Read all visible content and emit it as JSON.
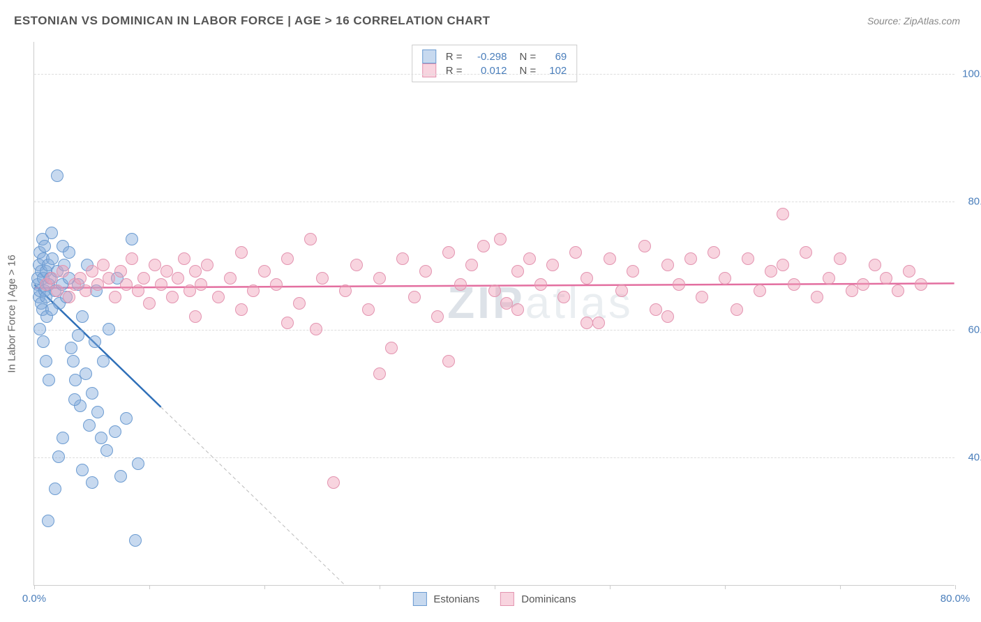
{
  "header": {
    "title": "ESTONIAN VS DOMINICAN IN LABOR FORCE | AGE > 16 CORRELATION CHART",
    "source": "Source: ZipAtlas.com"
  },
  "chart": {
    "type": "scatter",
    "yaxis_label": "In Labor Force | Age > 16",
    "xlim": [
      0,
      80
    ],
    "ylim": [
      20,
      105
    ],
    "yticks": [
      40,
      60,
      80,
      100
    ],
    "ytick_labels": [
      "40.0%",
      "60.0%",
      "80.0%",
      "100.0%"
    ],
    "xticks": [
      0,
      10,
      20,
      30,
      40,
      50,
      60,
      70,
      80
    ],
    "xtick_labels": {
      "0": "0.0%",
      "80": "80.0%"
    },
    "grid_color": "#dddddd",
    "axis_color": "#cccccc",
    "background_color": "#ffffff",
    "tick_label_color": "#4a7ebb",
    "point_radius": 9,
    "series": [
      {
        "name": "Estonians",
        "fill_color": "rgba(130,170,220,0.45)",
        "stroke_color": "#6b9bd1",
        "regression_color": "#2e6fb8",
        "regression_solid_xmax": 11,
        "regression": {
          "x1": 0,
          "y1": 67,
          "x2": 27,
          "y2": 20
        },
        "points": [
          [
            0.3,
            67
          ],
          [
            0.3,
            68
          ],
          [
            0.4,
            65
          ],
          [
            0.4,
            70
          ],
          [
            0.5,
            66
          ],
          [
            0.5,
            72
          ],
          [
            0.6,
            64
          ],
          [
            0.6,
            69
          ],
          [
            0.7,
            74
          ],
          [
            0.7,
            63
          ],
          [
            0.8,
            68
          ],
          [
            0.8,
            71
          ],
          [
            0.9,
            66
          ],
          [
            0.9,
            73
          ],
          [
            1.0,
            65
          ],
          [
            1.0,
            69
          ],
          [
            1.1,
            62
          ],
          [
            1.2,
            70
          ],
          [
            1.3,
            67
          ],
          [
            1.4,
            68
          ],
          [
            1.5,
            63
          ],
          [
            1.6,
            71
          ],
          [
            1.8,
            66
          ],
          [
            2.0,
            69
          ],
          [
            2.2,
            64
          ],
          [
            2.4,
            67
          ],
          [
            2.6,
            70
          ],
          [
            2.8,
            65
          ],
          [
            3.0,
            68
          ],
          [
            3.2,
            57
          ],
          [
            3.4,
            55
          ],
          [
            3.6,
            52
          ],
          [
            3.8,
            59
          ],
          [
            4.0,
            48
          ],
          [
            4.2,
            62
          ],
          [
            4.5,
            53
          ],
          [
            4.8,
            45
          ],
          [
            5.0,
            50
          ],
          [
            5.3,
            58
          ],
          [
            5.5,
            47
          ],
          [
            5.8,
            43
          ],
          [
            6.0,
            55
          ],
          [
            6.3,
            41
          ],
          [
            6.5,
            60
          ],
          [
            7.0,
            44
          ],
          [
            7.5,
            37
          ],
          [
            8.0,
            46
          ],
          [
            8.5,
            74
          ],
          [
            9.0,
            39
          ],
          [
            2.0,
            84
          ],
          [
            1.5,
            75
          ],
          [
            2.5,
            73
          ],
          [
            3.0,
            72
          ],
          [
            1.2,
            30
          ],
          [
            1.8,
            35
          ],
          [
            2.1,
            40
          ],
          [
            2.5,
            43
          ],
          [
            3.5,
            49
          ],
          [
            4.2,
            38
          ],
          [
            5.0,
            36
          ],
          [
            0.5,
            60
          ],
          [
            0.8,
            58
          ],
          [
            1.0,
            55
          ],
          [
            1.3,
            52
          ],
          [
            3.8,
            67
          ],
          [
            4.6,
            70
          ],
          [
            5.4,
            66
          ],
          [
            7.2,
            68
          ],
          [
            8.8,
            27
          ]
        ]
      },
      {
        "name": "Dominicans",
        "fill_color": "rgba(240,160,185,0.45)",
        "stroke_color": "#e394b0",
        "regression_color": "#e36fa0",
        "regression_solid_xmax": 80,
        "regression": {
          "x1": 0,
          "y1": 66.5,
          "x2": 80,
          "y2": 67.2
        },
        "points": [
          [
            1,
            67
          ],
          [
            1.5,
            68
          ],
          [
            2,
            66
          ],
          [
            2.5,
            69
          ],
          [
            3,
            65
          ],
          [
            3.5,
            67
          ],
          [
            4,
            68
          ],
          [
            4.5,
            66
          ],
          [
            5,
            69
          ],
          [
            5.5,
            67
          ],
          [
            6,
            70
          ],
          [
            6.5,
            68
          ],
          [
            7,
            65
          ],
          [
            7.5,
            69
          ],
          [
            8,
            67
          ],
          [
            8.5,
            71
          ],
          [
            9,
            66
          ],
          [
            9.5,
            68
          ],
          [
            10,
            64
          ],
          [
            10.5,
            70
          ],
          [
            11,
            67
          ],
          [
            11.5,
            69
          ],
          [
            12,
            65
          ],
          [
            12.5,
            68
          ],
          [
            13,
            71
          ],
          [
            13.5,
            66
          ],
          [
            14,
            69
          ],
          [
            14.5,
            67
          ],
          [
            15,
            70
          ],
          [
            16,
            65
          ],
          [
            17,
            68
          ],
          [
            18,
            72
          ],
          [
            19,
            66
          ],
          [
            20,
            69
          ],
          [
            21,
            67
          ],
          [
            22,
            71
          ],
          [
            23,
            64
          ],
          [
            24,
            74
          ],
          [
            24.5,
            60
          ],
          [
            25,
            68
          ],
          [
            26,
            36
          ],
          [
            27,
            66
          ],
          [
            28,
            70
          ],
          [
            29,
            63
          ],
          [
            30,
            68
          ],
          [
            31,
            57
          ],
          [
            32,
            71
          ],
          [
            33,
            65
          ],
          [
            34,
            69
          ],
          [
            35,
            62
          ],
          [
            36,
            72
          ],
          [
            37,
            67
          ],
          [
            38,
            70
          ],
          [
            39,
            73
          ],
          [
            40,
            66
          ],
          [
            40.5,
            74
          ],
          [
            41,
            64
          ],
          [
            42,
            69
          ],
          [
            43,
            71
          ],
          [
            44,
            67
          ],
          [
            45,
            70
          ],
          [
            46,
            65
          ],
          [
            47,
            72
          ],
          [
            48,
            68
          ],
          [
            49,
            61
          ],
          [
            50,
            71
          ],
          [
            51,
            66
          ],
          [
            52,
            69
          ],
          [
            53,
            73
          ],
          [
            54,
            63
          ],
          [
            55,
            70
          ],
          [
            56,
            67
          ],
          [
            57,
            71
          ],
          [
            58,
            65
          ],
          [
            59,
            72
          ],
          [
            60,
            68
          ],
          [
            61,
            63
          ],
          [
            62,
            71
          ],
          [
            63,
            66
          ],
          [
            64,
            69
          ],
          [
            65,
            70
          ],
          [
            66,
            67
          ],
          [
            67,
            72
          ],
          [
            68,
            65
          ],
          [
            69,
            68
          ],
          [
            70,
            71
          ],
          [
            71,
            66
          ],
          [
            72,
            67
          ],
          [
            73,
            70
          ],
          [
            74,
            68
          ],
          [
            75,
            66
          ],
          [
            76,
            69
          ],
          [
            77,
            67
          ],
          [
            65,
            78
          ],
          [
            55,
            62
          ],
          [
            48,
            61
          ],
          [
            42,
            63
          ],
          [
            36,
            55
          ],
          [
            30,
            53
          ],
          [
            22,
            61
          ],
          [
            18,
            63
          ],
          [
            14,
            62
          ]
        ]
      }
    ],
    "stats_box": [
      {
        "swatch_fill": "rgba(130,170,220,0.45)",
        "swatch_stroke": "#6b9bd1",
        "r_label": "R =",
        "r_value": "-0.298",
        "n_label": "N =",
        "n_value": "69"
      },
      {
        "swatch_fill": "rgba(240,160,185,0.45)",
        "swatch_stroke": "#e394b0",
        "r_label": "R =",
        "r_value": "0.012",
        "n_label": "N =",
        "n_value": "102"
      }
    ],
    "footer_legend": [
      {
        "swatch_fill": "rgba(130,170,220,0.45)",
        "swatch_stroke": "#6b9bd1",
        "label": "Estonians"
      },
      {
        "swatch_fill": "rgba(240,160,185,0.45)",
        "swatch_stroke": "#e394b0",
        "label": "Dominicans"
      }
    ],
    "watermark": {
      "bold": "ZIP",
      "light": "atlas"
    }
  }
}
